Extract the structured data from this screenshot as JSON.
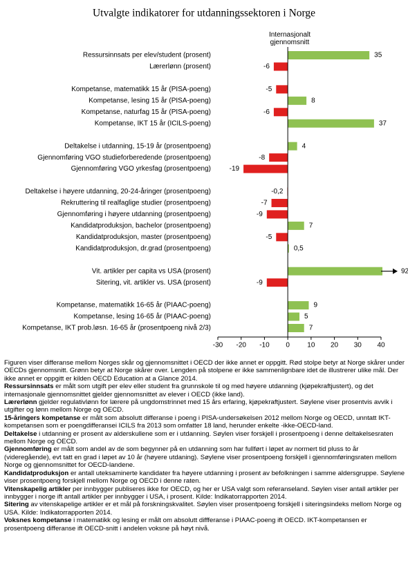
{
  "chart_data": {
    "type": "hbar",
    "title": "Utvalgte indikatorer for utdanningssektoren i Norge",
    "annotation": "Internasjonalt gjennomsnitt",
    "categories": [
      "Ressursinnsats per elev/student (prosent)",
      "Lærerlønn (prosent)",
      null,
      "Kompetanse, matematikk 15 år (PISA-poeng)",
      "Kompetanse, lesing 15 år (PISA-poeng)",
      "Kompetanse, naturfag  15 år (PISA-poeng)",
      "Kompetanse, IKT 15 år (ICILS-poeng)",
      null,
      "Deltakelse i utdanning, 15-19 år (prosentpoeng)",
      "Gjennomføring VGO studieforberedende (prosentpoeng)",
      "Gjennomføring VGO yrkesfag (prosentpoeng)",
      null,
      "Deltakelse i høyere utdanning, 20-24-åringer (prosentpoeng)",
      "Rekruttering til realfaglige studier (prosentpoeng)",
      "Gjennomføring i høyere utdanning (prosentpoeng)",
      "Kandidatproduksjon, bachelor (prosentpoeng)",
      "Kandidatproduksjon, master (prosentpoeng)",
      "Kandidatproduksjon, dr.grad (prosentpoeng)",
      null,
      "Vit. artikler per capita vs USA (prosent)",
      "Sitering, vit. artikler vs. USA (prosent)",
      null,
      "Kompetanse, matematikk 16-65 år (PIAAC-poeng)",
      "Kompetanse, lesing 16-65 år (PIAAC-poeng)",
      "Kompetanse, IKT prob.løsn. 16-65 år (prosentpoeng nivå 2/3)"
    ],
    "values": [
      35,
      -6,
      null,
      -5,
      8,
      -6,
      37,
      null,
      4,
      -8,
      -19,
      null,
      -0.2,
      -7,
      -9,
      7,
      -5,
      0.5,
      null,
      92,
      -9,
      null,
      9,
      5,
      7
    ],
    "value_labels": [
      "35",
      "-6",
      null,
      "-5",
      "8",
      "-6",
      "37",
      null,
      "4",
      "-8",
      "-19",
      null,
      "-0,2",
      "-7",
      "-9",
      "7",
      "-5",
      "0,5",
      null,
      "92",
      "-9",
      null,
      "9",
      "5",
      "7"
    ],
    "positive_color": "#8fc152",
    "negative_color": "#e0201f",
    "xlim": [
      -30,
      40
    ],
    "xticks": [
      -30,
      -20,
      -10,
      0,
      10,
      20,
      30,
      40
    ]
  },
  "notes": [
    {
      "term": null,
      "text": "Figuren viser differanse mellom Norges skår og gjennomsnittet i OECD der ikke annet er oppgitt. Rød stolpe betyr at Norge skårer under OECDs gjennomsnitt. Grønn betyr at Norge skårer over.  Lengden på stolpene er ikke sammenlignbare idet de illustrerer ulike mål. Der ikke annet er oppgitt er kilden OECD Education at a Glance 2014."
    },
    {
      "term": "Ressursinnsats",
      "text": " er målt som utgift per elev eller student fra grunnskole til og med høyere utdanning (kjøpekraftjustert), og det internasjonale gjennomsnittet gjelder gjennomsnittet av elever i OECD (ikke land)."
    },
    {
      "term": "Lærerlønn",
      "text": " gjelder regulativlønn for lærere på ungdomstrinnet med 15 års erfaring, kjøpekraftjustert.  Søylene viser prosentvis avvik i utgifter og lønn mellom Norge og OECD."
    },
    {
      "term": "15-åringers kompetanse",
      "text": " er målt som absolutt differanse i poeng i PISA-undersøkelsen 2012 mellom Norge og OECD, unntatt IKT-kompetansen som er poengdifferansei ICILS fra 2013 som omfatter 18 land, herunder enkelte -ikke-OECD-land."
    },
    {
      "term": "Deltakelse",
      "text": " i utdanning er prosent av alderskullene som er i utdanning. Søylen viser forskjell i prosentpoeng  i denne deltakelsesraten mellom Norge og OECD."
    },
    {
      "term": "Gjennomføring",
      "text": " er målt som andel av de som begynner på en utdanning som har fullført i løpet av normert tid pluss to år (videregående), evt  tatt en grad i løpet av 10 år (høyere utdaning). Søylene viser prosentpoeng forskjell i gjennomføringsraten mellom Norge og gjennomsnittet for OECD-landene."
    },
    {
      "term": "Kandidatproduksjon",
      "text": " er antall uteksaminerte kandidater fra høyere utdanning i prosent av befolkningen i samme aldersgruppe. Søylene viser prosentpoeng forskjell mellom Norge og OECD i denne raten."
    },
    {
      "term": "Vitenskapelig artikler",
      "text": " per innbygger publiseres ikke for OECD, og her er USA valgt som referanseland. Søylen viser antall artikler per innbygger i norge ift antall artikler per innbygger i USA, i prosent. Kilde: Indikatorrapporten 2014."
    },
    {
      "term": "Sitering",
      "text": " av vitenskapelige artikler er et mål på forskningskvalitet. Søylen viser prosentpoeng forskjell i siteringsindeks mellom Norge og USA. Kilde: Indikatorrapporten 2014."
    },
    {
      "term": "Voksnes kompetanse",
      "text": " i matematikk og lesing er målt om absolutt diffferanse i PIAAC-poeng ift OECD. IKT-kompetansen er prosentpoeng differanse ift OECD-snitt i andelen voksne på høyt nivå."
    }
  ]
}
